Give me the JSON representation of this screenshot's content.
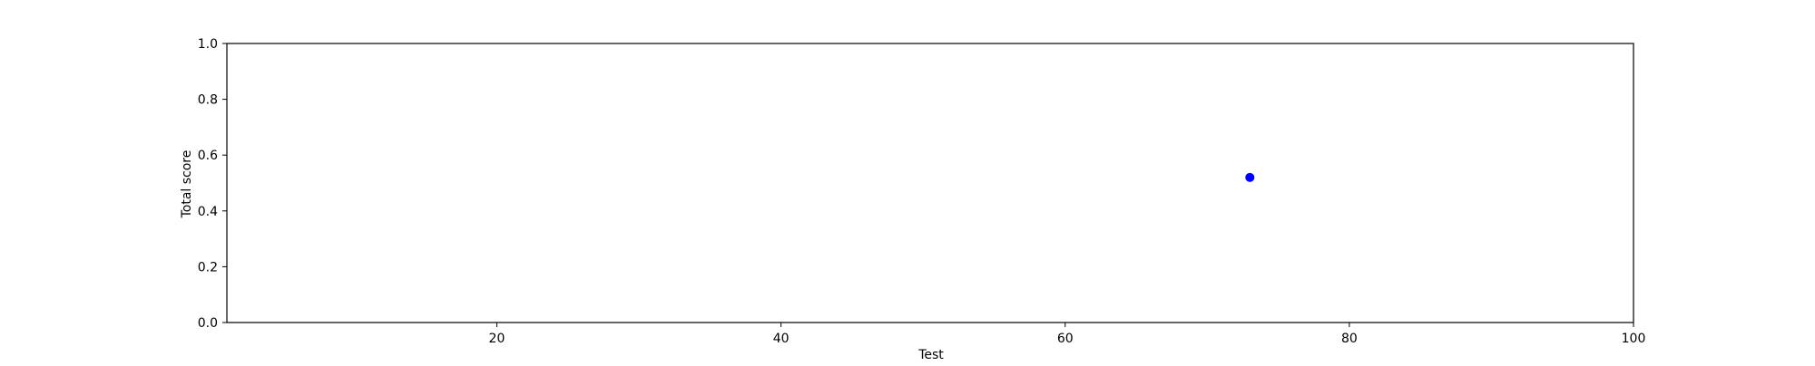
{
  "chart_data": {
    "type": "scatter",
    "title": "",
    "xlabel": "Test",
    "ylabel": "Total score",
    "xlim": [
      1,
      100
    ],
    "ylim": [
      0.0,
      1.0
    ],
    "grid": false,
    "x_ticks": [
      20,
      40,
      60,
      80,
      100
    ],
    "x_tick_labels": [
      "20",
      "40",
      "60",
      "80",
      "100"
    ],
    "y_ticks": [
      0.0,
      0.2,
      0.4,
      0.6,
      0.8,
      1.0
    ],
    "y_tick_labels": [
      "0.0",
      "0.2",
      "0.4",
      "0.6",
      "0.8",
      "1.0"
    ],
    "series": [
      {
        "color": "#0000ff",
        "marker": "circle",
        "x": [
          73
        ],
        "y": [
          0.52
        ]
      }
    ]
  }
}
